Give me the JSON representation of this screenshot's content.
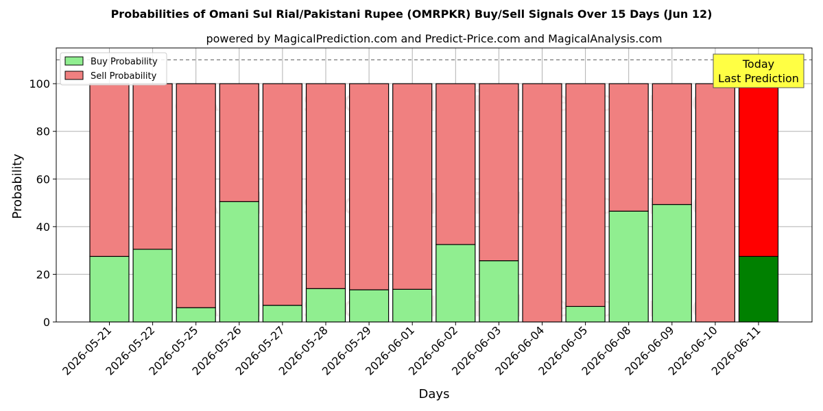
{
  "chart_data": {
    "type": "bar",
    "stacked": true,
    "title": "Probabilities of Omani Sul Rial/Pakistani Rupee (OMRPKR) Buy/Sell Signals Over 15 Days (Jun 12)",
    "subtitle": "powered by MagicalPrediction.com and Predict-Price.com and MagicalAnalysis.com",
    "xlabel": "Days",
    "ylabel": "Probability",
    "ylim": [
      0,
      115
    ],
    "yticks": [
      0,
      20,
      40,
      60,
      80,
      100
    ],
    "reference_line": 110,
    "grid": true,
    "legend_position": "top-left",
    "categories": [
      "2026-05-21",
      "2026-05-22",
      "2026-05-25",
      "2026-05-26",
      "2026-05-27",
      "2026-05-28",
      "2026-05-29",
      "2026-06-01",
      "2026-06-02",
      "2026-06-03",
      "2026-06-04",
      "2026-06-05",
      "2026-06-08",
      "2026-06-09",
      "2026-06-10",
      "2026-06-11"
    ],
    "series": [
      {
        "name": "Buy Probability",
        "color": "#90ee90",
        "highlight_color": "#008000",
        "values": [
          27.5,
          30.5,
          6,
          50.5,
          7,
          14,
          13.5,
          13.7,
          32.5,
          25.7,
          0,
          6.5,
          46.5,
          49.3,
          0,
          27.5
        ]
      },
      {
        "name": "Sell Probability",
        "color": "#f08080",
        "highlight_color": "#ff0000",
        "values": [
          72.5,
          69.5,
          94,
          49.5,
          93,
          86,
          86.5,
          86.3,
          67.5,
          74.3,
          100,
          93.5,
          53.5,
          50.7,
          100,
          72.5
        ]
      }
    ],
    "annotation": {
      "lines": [
        "Today",
        "Last Prediction"
      ],
      "color": "#ffff44"
    },
    "watermarks": [
      "MagicalAnalysis.com",
      "MagicalPrediction.com"
    ]
  }
}
